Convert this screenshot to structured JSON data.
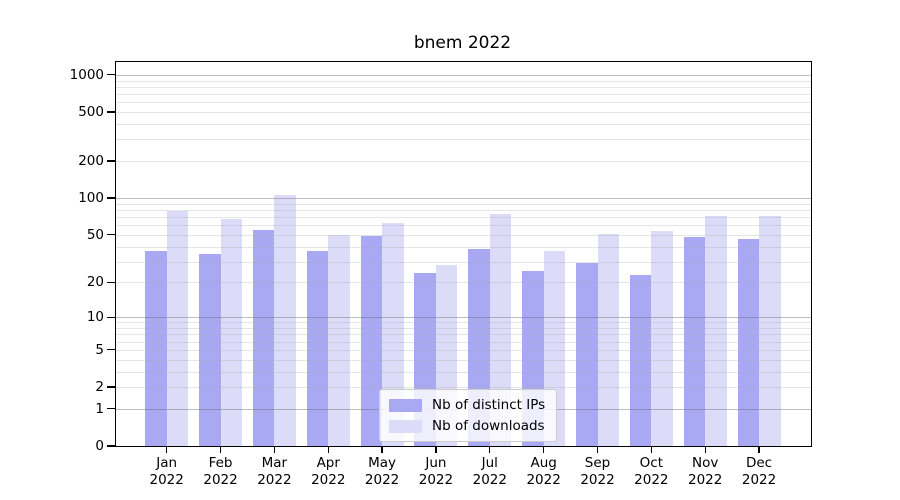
{
  "title": "bnem 2022",
  "legend": {
    "items": [
      {
        "label": "Nb of distinct IPs",
        "color": "#a9a9f3"
      },
      {
        "label": "Nb of downloads",
        "color": "#dcdcf8"
      }
    ]
  },
  "chart_data": {
    "type": "bar",
    "title": "bnem 2022",
    "xlabel": "",
    "ylabel": "",
    "year_label": "2022",
    "categories": [
      "Jan",
      "Feb",
      "Mar",
      "Apr",
      "May",
      "Jun",
      "Jul",
      "Aug",
      "Sep",
      "Oct",
      "Nov",
      "Dec"
    ],
    "series": [
      {
        "name": "Nb of distinct IPs",
        "color": "#a9a9f3",
        "values": [
          37,
          35,
          55,
          37,
          49,
          24,
          38,
          25,
          29,
          23,
          48,
          46
        ]
      },
      {
        "name": "Nb of downloads",
        "color": "#dcdcf8",
        "values": [
          78,
          67,
          105,
          50,
          63,
          28,
          74,
          37,
          51,
          54,
          72,
          72
        ]
      }
    ],
    "y_axis": {
      "scale": "log1p",
      "tick_values": [
        0,
        1,
        2,
        5,
        10,
        20,
        50,
        100,
        200,
        500,
        1000
      ],
      "tick_labels": [
        "0",
        "1",
        "2",
        "5",
        "10",
        "20",
        "50",
        "100",
        "200",
        "500",
        "1000"
      ],
      "major_gridlines": [
        1,
        10,
        100,
        1000
      ],
      "minor_gridlines": [
        2,
        3,
        4,
        5,
        6,
        7,
        8,
        9,
        20,
        30,
        40,
        50,
        60,
        70,
        80,
        90,
        200,
        300,
        400,
        500,
        600,
        700,
        800,
        900
      ],
      "range": [
        0,
        1100
      ]
    },
    "grid": true,
    "legend_position": "lower-center"
  }
}
